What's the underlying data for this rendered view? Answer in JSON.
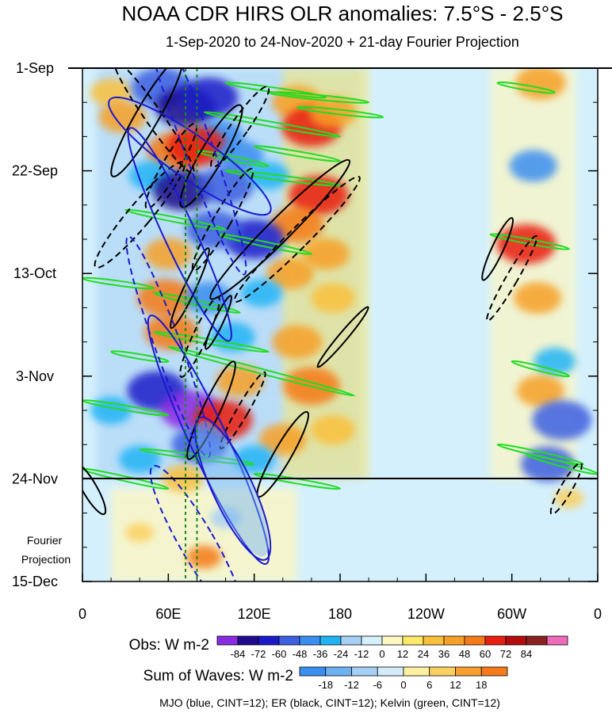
{
  "chart_data": {
    "type": "heatmap",
    "title": "NOAA CDR HIRS OLR anomalies: 7.5°S - 2.5°S",
    "subtitle": "1-Sep-2020 to 24-Nov-2020 + 21-day Fourier Projection",
    "x_ticks": [
      "0",
      "60E",
      "120E",
      "180",
      "120W",
      "60W",
      "0"
    ],
    "x_tick_lon": [
      0,
      60,
      120,
      180,
      240,
      300,
      360
    ],
    "y_ticks": [
      "1-Sep",
      "22-Sep",
      "13-Oct",
      "3-Nov",
      "24-Nov",
      "15-Dec"
    ],
    "y_tick_day": [
      0,
      21,
      42,
      63,
      84,
      105
    ],
    "xlim": [
      0,
      360
    ],
    "ylim_days": [
      0,
      105
    ],
    "projection_start_label": "24-Nov",
    "projection_label": "Fourier Projection",
    "reference_lines_lon": [
      72,
      80
    ],
    "obs_colorbar": {
      "label": "Obs: W m-2",
      "levels": [
        "-84",
        "-72",
        "-60",
        "-48",
        "-36",
        "-24",
        "-12",
        "0",
        "12",
        "24",
        "36",
        "48",
        "60",
        "72",
        "84"
      ],
      "colors": [
        "#8a2be2",
        "#1e0a8c",
        "#1a1ac8",
        "#3d5fe0",
        "#3a8ef0",
        "#20b4f5",
        "#a6cff5",
        "#d4f0fc",
        "#fdf7c3",
        "#fde96a",
        "#fbc03a",
        "#f7a028",
        "#f57a18",
        "#e81e10",
        "#b40c0c",
        "#8a2222",
        "#f06aba"
      ]
    },
    "waves_colorbar": {
      "label": "Sum of Waves: W m-2",
      "levels": [
        "-18",
        "-12",
        "-6",
        "0",
        "6",
        "12",
        "18"
      ],
      "colors": [
        "#3a8ef0",
        "#6fb2f3",
        "#a6cff5",
        "#d4ecfa",
        "#fdf0a0",
        "#fcd060",
        "#f9a030",
        "#f57a18"
      ]
    },
    "wave_contours": [
      {
        "name": "MJO",
        "color": "#1a1ad0",
        "cint": 12
      },
      {
        "name": "ER",
        "color": "#000000",
        "cint": 12
      },
      {
        "name": "Kelvin",
        "color": "#22dd22",
        "cint": 12
      }
    ],
    "anomaly_blobs": [
      {
        "lon": 20,
        "day": 5,
        "value": 30
      },
      {
        "lon": 28,
        "day": 10,
        "value": 40
      },
      {
        "lon": 55,
        "day": 4,
        "value": -60
      },
      {
        "lon": 72,
        "day": 8,
        "value": -80
      },
      {
        "lon": 88,
        "day": 6,
        "value": -70
      },
      {
        "lon": 95,
        "day": 14,
        "value": -45
      },
      {
        "lon": 150,
        "day": 7,
        "value": 45
      },
      {
        "lon": 160,
        "day": 12,
        "value": 60
      },
      {
        "lon": 175,
        "day": 9,
        "value": 40
      },
      {
        "lon": 65,
        "day": 17,
        "value": 55
      },
      {
        "lon": 80,
        "day": 16,
        "value": 65
      },
      {
        "lon": 110,
        "day": 18,
        "value": -40
      },
      {
        "lon": 48,
        "day": 22,
        "value": -35
      },
      {
        "lon": 70,
        "day": 25,
        "value": -80
      },
      {
        "lon": 100,
        "day": 24,
        "value": -55
      },
      {
        "lon": 130,
        "day": 22,
        "value": -30
      },
      {
        "lon": 165,
        "day": 26,
        "value": 60
      },
      {
        "lon": 150,
        "day": 32,
        "value": 50
      },
      {
        "lon": 120,
        "day": 35,
        "value": -70
      },
      {
        "lon": 92,
        "day": 33,
        "value": -55
      },
      {
        "lon": 60,
        "day": 38,
        "value": 40
      },
      {
        "lon": 145,
        "day": 42,
        "value": 40
      },
      {
        "lon": 170,
        "day": 38,
        "value": 40
      },
      {
        "lon": 58,
        "day": 47,
        "value": 55
      },
      {
        "lon": 88,
        "day": 47,
        "value": -40
      },
      {
        "lon": 125,
        "day": 46,
        "value": -30
      },
      {
        "lon": 175,
        "day": 47,
        "value": 35
      },
      {
        "lon": 62,
        "day": 54,
        "value": 50
      },
      {
        "lon": 105,
        "day": 55,
        "value": -35
      },
      {
        "lon": 150,
        "day": 56,
        "value": 45
      },
      {
        "lon": 52,
        "day": 66,
        "value": -70
      },
      {
        "lon": 75,
        "day": 70,
        "value": -85
      },
      {
        "lon": 110,
        "day": 64,
        "value": 40
      },
      {
        "lon": 160,
        "day": 65,
        "value": 55
      },
      {
        "lon": 98,
        "day": 72,
        "value": 60
      },
      {
        "lon": 82,
        "day": 77,
        "value": -55
      },
      {
        "lon": 140,
        "day": 76,
        "value": 40
      },
      {
        "lon": 120,
        "day": 80,
        "value": -30
      },
      {
        "lon": 175,
        "day": 74,
        "value": 35
      },
      {
        "lon": 40,
        "day": 80,
        "value": -30
      },
      {
        "lon": 20,
        "day": 70,
        "value": -30
      },
      {
        "lon": 70,
        "day": 84,
        "value": 30
      },
      {
        "lon": 320,
        "day": 3,
        "value": 45
      },
      {
        "lon": 315,
        "day": 20,
        "value": -40
      },
      {
        "lon": 310,
        "day": 36,
        "value": 60
      },
      {
        "lon": 318,
        "day": 47,
        "value": 40
      },
      {
        "lon": 330,
        "day": 60,
        "value": -30
      },
      {
        "lon": 320,
        "day": 66,
        "value": 40
      },
      {
        "lon": 335,
        "day": 72,
        "value": -60
      },
      {
        "lon": 325,
        "day": 81,
        "value": -50
      },
      {
        "lon": 85,
        "day": 100,
        "value": 18
      },
      {
        "lon": 100,
        "day": 92,
        "value": -12
      },
      {
        "lon": 40,
        "day": 95,
        "value": 8
      },
      {
        "lon": 340,
        "day": 88,
        "value": 10
      }
    ],
    "mjo_contours": [
      {
        "lon": 75,
        "day": 18,
        "rlon": 15,
        "rday": 20,
        "angle": -55,
        "dashed": false
      },
      {
        "lon": 78,
        "day": 14,
        "rlon": 10,
        "rday": 30,
        "angle": -20,
        "dashed": true
      },
      {
        "lon": 68,
        "day": 34,
        "rlon": 11,
        "rday": 24,
        "angle": -25,
        "dashed": false
      },
      {
        "lon": 60,
        "day": 57,
        "rlon": 9,
        "rday": 24,
        "angle": -20,
        "dashed": true
      },
      {
        "lon": 88,
        "day": 76,
        "rlon": 13,
        "rday": 28,
        "angle": -25,
        "dashed": false
      },
      {
        "lon": 105,
        "day": 86,
        "rlon": 14,
        "rday": 16,
        "angle": -25,
        "dashed": false
      },
      {
        "lon": 80,
        "day": 97,
        "rlon": 12,
        "rday": 18,
        "angle": -30,
        "dashed": true
      }
    ],
    "er_contours": [
      {
        "lon": 50,
        "day": 10,
        "rlon": 6,
        "rday": 14,
        "angle": -35,
        "dashed": true
      },
      {
        "lon": 45,
        "day": 10,
        "rlon": 8,
        "rday": 14,
        "angle": 30,
        "dashed": false
      },
      {
        "lon": 62,
        "day": 20,
        "rlon": 6,
        "rday": 10,
        "angle": 30,
        "dashed": true
      },
      {
        "lon": 90,
        "day": 18,
        "rlon": 8,
        "rday": 12,
        "angle": 30,
        "dashed": false
      },
      {
        "lon": 110,
        "day": 12,
        "rlon": 6,
        "rday": 10,
        "angle": 35,
        "dashed": true
      },
      {
        "lon": 40,
        "day": 30,
        "rlon": 8,
        "rday": 14,
        "angle": 40,
        "dashed": true
      },
      {
        "lon": 98,
        "day": 31,
        "rlon": 6,
        "rday": 12,
        "angle": 30,
        "dashed": true
      },
      {
        "lon": 138,
        "day": 33,
        "rlon": 8,
        "rday": 20,
        "angle": 45,
        "dashed": false
      },
      {
        "lon": 150,
        "day": 35,
        "rlon": 7,
        "rday": 18,
        "angle": 45,
        "dashed": true
      },
      {
        "lon": 75,
        "day": 45,
        "rlon": 4,
        "rday": 9,
        "angle": 25,
        "dashed": false
      },
      {
        "lon": 82,
        "day": 55,
        "rlon": 5,
        "rday": 9,
        "angle": 25,
        "dashed": true
      },
      {
        "lon": 95,
        "day": 52,
        "rlon": 3,
        "rday": 6,
        "angle": 25,
        "dashed": false
      },
      {
        "lon": 182,
        "day": 55,
        "rlon": 3,
        "rday": 8,
        "angle": 40,
        "dashed": false
      },
      {
        "lon": 90,
        "day": 70,
        "rlon": 6,
        "rday": 11,
        "angle": 25,
        "dashed": false
      },
      {
        "lon": 112,
        "day": 70,
        "rlon": 4,
        "rday": 9,
        "angle": 30,
        "dashed": true
      },
      {
        "lon": 140,
        "day": 79,
        "rlon": 6,
        "rday": 10,
        "angle": 30,
        "dashed": false
      },
      {
        "lon": 290,
        "day": 37,
        "rlon": 4,
        "rday": 7,
        "angle": 25,
        "dashed": false
      },
      {
        "lon": 300,
        "day": 43,
        "rlon": 4,
        "rday": 10,
        "angle": 30,
        "dashed": true
      },
      {
        "lon": 338,
        "day": 86,
        "rlon": 4,
        "rday": 6,
        "angle": 30,
        "dashed": true
      },
      {
        "lon": 5,
        "day": 86,
        "rlon": 5,
        "rday": 6,
        "angle": -30,
        "dashed": false
      }
    ],
    "kelvin_contours": [
      {
        "lon0": 100,
        "day0": 3,
        "lon1": 170,
        "day1": 6
      },
      {
        "lon0": 130,
        "day0": 5,
        "lon1": 200,
        "day1": 7
      },
      {
        "lon0": 150,
        "day0": 8,
        "lon1": 210,
        "day1": 10
      },
      {
        "lon0": 85,
        "day0": 9,
        "lon1": 180,
        "day1": 14
      },
      {
        "lon0": 120,
        "day0": 16,
        "lon1": 180,
        "day1": 19
      },
      {
        "lon0": 80,
        "day0": 17,
        "lon1": 130,
        "day1": 20
      },
      {
        "lon0": 100,
        "day0": 21,
        "lon1": 180,
        "day1": 24
      },
      {
        "lon0": 30,
        "day0": 29,
        "lon1": 100,
        "day1": 33
      },
      {
        "lon0": 95,
        "day0": 34,
        "lon1": 160,
        "day1": 38
      },
      {
        "lon0": 0,
        "day0": 43,
        "lon1": 50,
        "day1": 45
      },
      {
        "lon0": 50,
        "day0": 46,
        "lon1": 110,
        "day1": 50
      },
      {
        "lon0": 50,
        "day0": 54,
        "lon1": 130,
        "day1": 58
      },
      {
        "lon0": 20,
        "day0": 58,
        "lon1": 60,
        "day1": 60
      },
      {
        "lon0": 60,
        "day0": 57,
        "lon1": 190,
        "day1": 67
      },
      {
        "lon0": 0,
        "day0": 68,
        "lon1": 60,
        "day1": 71
      },
      {
        "lon0": 40,
        "day0": 78,
        "lon1": 120,
        "day1": 81
      },
      {
        "lon0": 0,
        "day0": 82,
        "lon1": 60,
        "day1": 86
      },
      {
        "lon0": 120,
        "day0": 83,
        "lon1": 180,
        "day1": 86
      },
      {
        "lon0": 290,
        "day0": 3,
        "lon1": 330,
        "day1": 5
      },
      {
        "lon0": 285,
        "day0": 34,
        "lon1": 340,
        "day1": 37
      },
      {
        "lon0": 300,
        "day0": 60,
        "lon1": 340,
        "day1": 63
      },
      {
        "lon0": 290,
        "day0": 77,
        "lon1": 350,
        "day1": 81
      },
      {
        "lon0": 310,
        "day0": 79,
        "lon1": 360,
        "day1": 83
      }
    ]
  },
  "footer": {
    "legend_text": "MJO (blue, CINT=12); ER (black, CINT=12); Kelvin (green, CINT=12)"
  }
}
